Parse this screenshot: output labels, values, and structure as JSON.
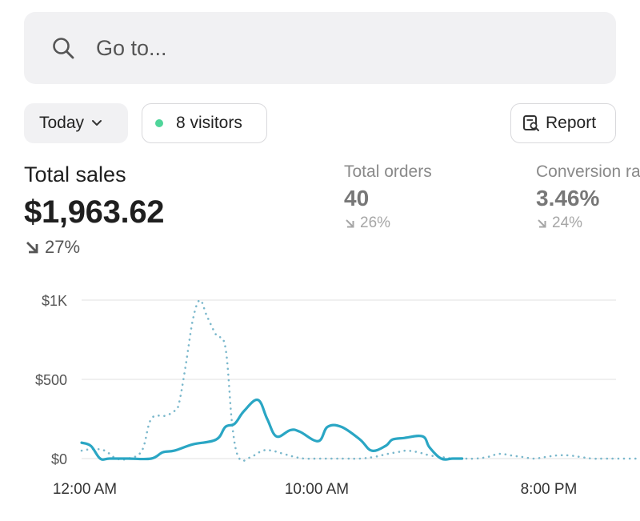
{
  "search": {
    "placeholder": "Go to...",
    "icon": "search-icon"
  },
  "filters": {
    "date_label": "Today",
    "visitors_label": "8 visitors",
    "report_label": "Report",
    "live_dot_color": "#4fd59a"
  },
  "metrics": {
    "total_sales": {
      "label": "Total sales",
      "value": "$1,963.62",
      "change": "27%"
    },
    "total_orders": {
      "label": "Total orders",
      "value": "40",
      "change": "26%"
    },
    "conversion": {
      "label": "Conversion rate",
      "value": "3.46%",
      "change": "24%"
    }
  },
  "chart_data": {
    "type": "line",
    "y_ticks": [
      "$1K",
      "$500",
      "$0"
    ],
    "x_ticks": [
      "12:00 AM",
      "10:00 AM",
      "8:00 PM"
    ],
    "ylim": [
      0,
      1000
    ],
    "grid": true,
    "series": [
      {
        "style": "solid",
        "color": "#2aa6c4",
        "x": [
          0,
          0.4,
          0.8,
          1.2,
          2.0,
          3.0,
          3.5,
          4.0,
          4.8,
          5.8,
          6.2,
          6.6,
          7.0,
          7.6,
          8.0,
          8.4,
          9.0,
          9.4,
          10.2,
          10.6,
          11.2,
          12.0,
          12.5,
          13.1,
          13.4,
          13.9,
          14.7,
          15.0,
          15.5,
          16.0,
          16.4
        ],
        "y": [
          100,
          80,
          0,
          0,
          0,
          0,
          40,
          50,
          90,
          120,
          200,
          220,
          300,
          370,
          250,
          140,
          180,
          170,
          110,
          200,
          200,
          120,
          50,
          80,
          120,
          130,
          140,
          70,
          0,
          0,
          0
        ]
      },
      {
        "style": "dotted",
        "color": "#7bb8cc",
        "x": [
          0,
          0.5,
          1.0,
          1.5,
          2.0,
          2.6,
          3.0,
          3.6,
          4.0,
          4.2,
          4.5,
          4.8,
          5.1,
          5.4,
          5.8,
          6.2,
          6.5,
          6.8,
          7.3,
          7.8,
          8.2,
          8.7,
          9.2,
          9.6,
          10.2,
          10.8,
          11.4,
          12.0,
          12.6,
          13.2,
          13.6,
          14.0,
          14.5,
          15.0,
          15.5,
          16.0,
          16.5,
          17.0,
          17.5,
          18.0,
          18.5,
          19.0,
          19.5,
          20.0,
          20.5,
          21.0,
          21.5,
          22.0,
          22.5,
          23.0,
          23.5,
          23.9
        ],
        "y": [
          50,
          60,
          50,
          0,
          0,
          50,
          250,
          270,
          300,
          350,
          600,
          880,
          1000,
          900,
          780,
          700,
          200,
          0,
          10,
          50,
          50,
          30,
          10,
          0,
          0,
          0,
          0,
          0,
          10,
          30,
          40,
          50,
          40,
          20,
          10,
          0,
          0,
          0,
          10,
          30,
          20,
          10,
          0,
          10,
          20,
          20,
          10,
          0,
          0,
          0,
          0,
          0
        ]
      }
    ]
  }
}
